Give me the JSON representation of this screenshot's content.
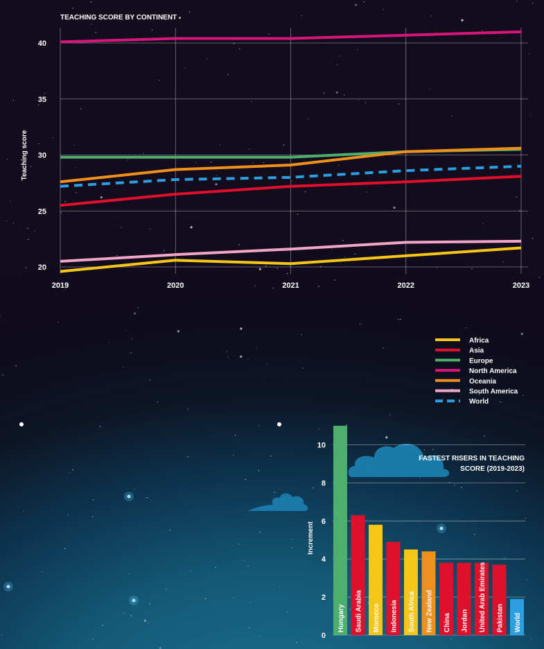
{
  "chart_data": [
    {
      "type": "line",
      "title": "TEACHING SCORE BY CONTINENT",
      "ylabel": "Teaching score",
      "x": [
        2019,
        2020,
        2021,
        2022,
        2023
      ],
      "x_tick_labels": [
        "2019",
        "2020",
        "2021",
        "2022",
        "2023"
      ],
      "y_ticks": [
        20,
        25,
        30,
        35,
        40
      ],
      "y_tick_labels": [
        "20",
        "25",
        "30",
        "35",
        "40"
      ],
      "ylim": [
        19.5,
        41.5
      ],
      "grid": true,
      "legend_position": "below-right",
      "series": [
        {
          "name": "Africa",
          "color": "#f5c518",
          "dashed": false,
          "values": [
            19.6,
            20.6,
            20.3,
            21.0,
            21.7
          ]
        },
        {
          "name": "Asia",
          "color": "#e0102d",
          "dashed": false,
          "values": [
            25.5,
            26.5,
            27.2,
            27.6,
            28.1
          ]
        },
        {
          "name": "Europe",
          "color": "#4dae6d",
          "dashed": false,
          "values": [
            29.8,
            29.8,
            29.8,
            30.3,
            30.5
          ]
        },
        {
          "name": "North America",
          "color": "#d6167a",
          "dashed": false,
          "values": [
            40.1,
            40.4,
            40.4,
            40.7,
            41.0
          ]
        },
        {
          "name": "Oceania",
          "color": "#ef8f1c",
          "dashed": false,
          "values": [
            27.6,
            28.7,
            29.1,
            30.3,
            30.6
          ]
        },
        {
          "name": "South America",
          "color": "#f1a6c8",
          "dashed": false,
          "values": [
            20.5,
            21.1,
            21.6,
            22.2,
            22.3
          ]
        },
        {
          "name": "World",
          "color": "#2d9fe0",
          "dashed": true,
          "values": [
            27.2,
            27.8,
            28.0,
            28.6,
            29.0
          ]
        }
      ]
    },
    {
      "type": "bar",
      "title": "FASTEST RISERS IN TEACHING SCORE (2019-2023)",
      "title_lines": [
        "FASTEST RISERS IN TEACHING",
        "SCORE (2019-2023)"
      ],
      "ylabel": "Increment",
      "y_ticks": [
        0,
        2,
        4,
        6,
        8,
        10
      ],
      "y_tick_labels": [
        "0",
        "2",
        "4",
        "6",
        "8",
        "10"
      ],
      "ylim": [
        0,
        11
      ],
      "grid": true,
      "categories": [
        "Hungary",
        "Saudi Arabia",
        "Morocco",
        "Indonesia",
        "South Africa",
        "New Zealand",
        "China",
        "Jordan",
        "United Arab Emirates",
        "Pakistan",
        "World"
      ],
      "values": [
        11.0,
        6.3,
        5.8,
        4.9,
        4.5,
        4.4,
        3.8,
        3.8,
        3.8,
        3.7,
        1.9
      ],
      "colors": [
        "#4dae6d",
        "#e0102d",
        "#f5c518",
        "#e0102d",
        "#f5c518",
        "#ef8f1c",
        "#e0102d",
        "#e0102d",
        "#e0102d",
        "#e0102d",
        "#2d9fe0"
      ]
    }
  ]
}
